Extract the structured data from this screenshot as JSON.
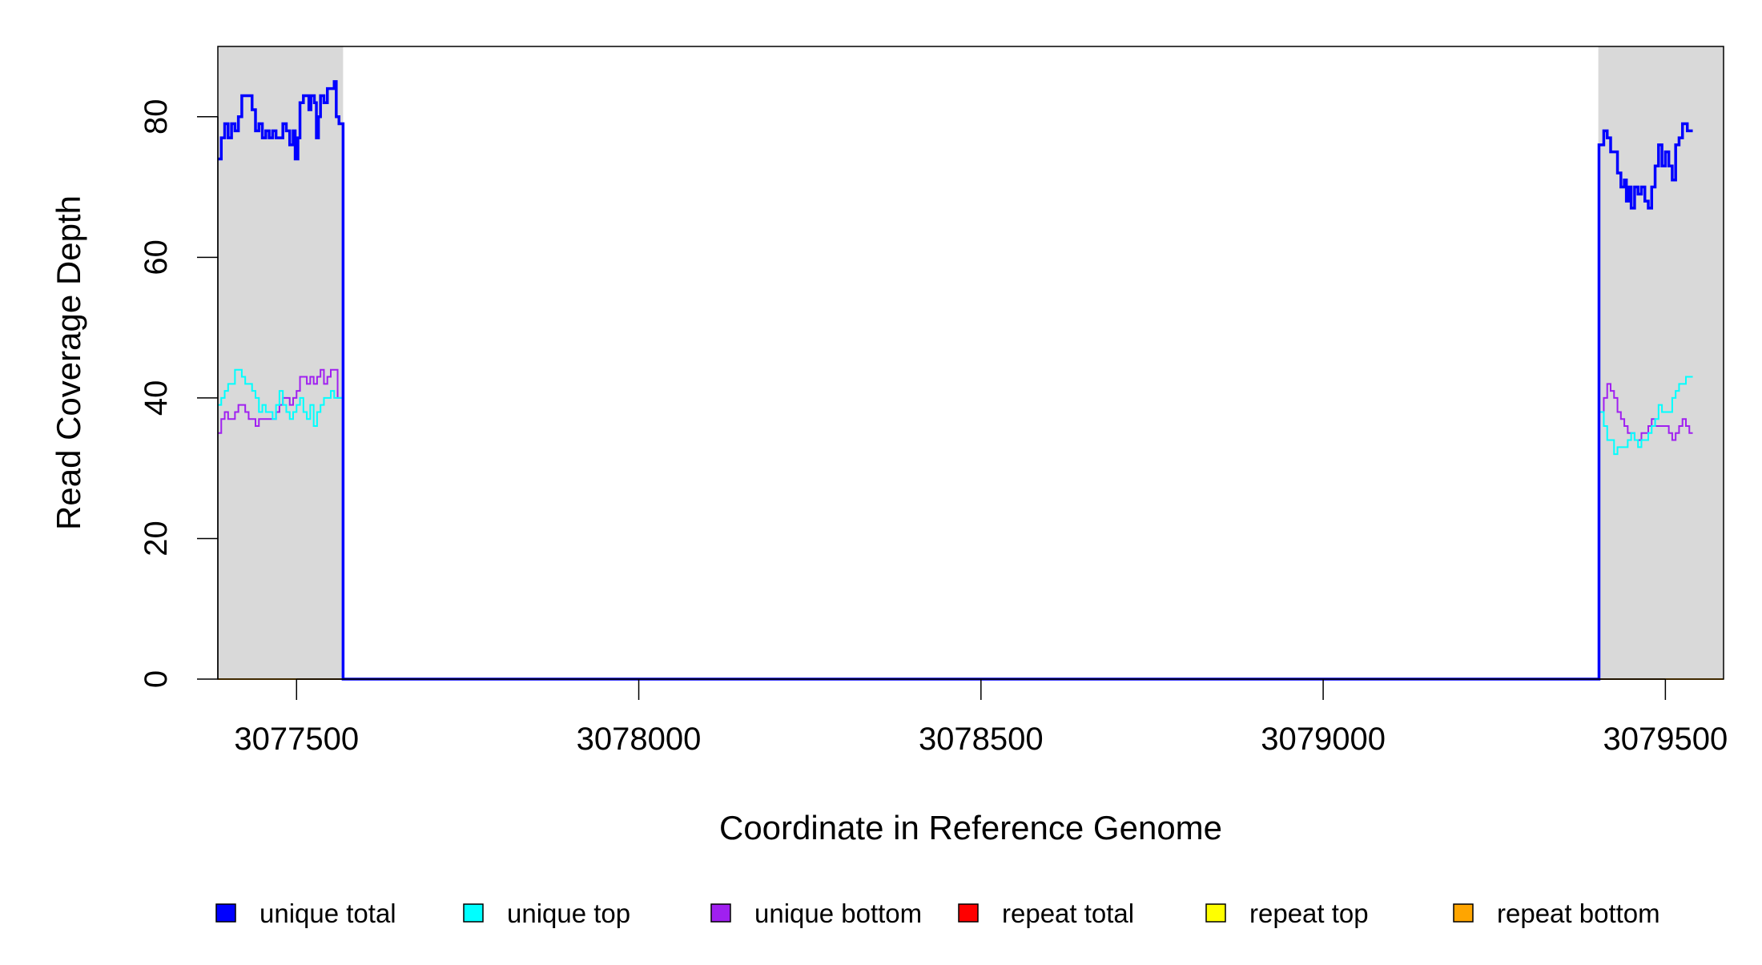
{
  "chart_data": {
    "type": "line",
    "title": "",
    "xlabel": "Coordinate in Reference Genome",
    "ylabel": "Read Coverage Depth",
    "xlim": [
      3077385,
      3079585
    ],
    "ylim": [
      0,
      90
    ],
    "x_ticks": [
      3077500,
      3078000,
      3078500,
      3079000,
      3079500
    ],
    "x_tick_labels": [
      "3077500",
      "3078000",
      "3078500",
      "3079000",
      "3079500"
    ],
    "y_ticks": [
      0,
      20,
      40,
      60,
      80
    ],
    "y_tick_labels": [
      "0",
      "20",
      "40",
      "60",
      "80"
    ],
    "shaded_regions": [
      [
        3077385,
        3077568
      ],
      [
        3079402,
        3079585
      ]
    ],
    "shade_color": "#d9d9d9",
    "grid": false,
    "legend": {
      "placement": "bottom",
      "entries": [
        {
          "label": "unique total",
          "color": "#0000ff"
        },
        {
          "label": "unique top",
          "color": "#00ffff"
        },
        {
          "label": "unique bottom",
          "color": "#a020f0"
        },
        {
          "label": "repeat total",
          "color": "#ff0000"
        },
        {
          "label": "repeat top",
          "color": "#ffff00"
        },
        {
          "label": "repeat bottom",
          "color": "#ffa500"
        }
      ]
    },
    "series": [
      {
        "name": "unique total",
        "color": "#0000ff",
        "points": [
          [
            3077385,
            74
          ],
          [
            3077390,
            77
          ],
          [
            3077395,
            79
          ],
          [
            3077400,
            77
          ],
          [
            3077405,
            79
          ],
          [
            3077410,
            78
          ],
          [
            3077415,
            80
          ],
          [
            3077420,
            83
          ],
          [
            3077430,
            83
          ],
          [
            3077435,
            81
          ],
          [
            3077440,
            78
          ],
          [
            3077445,
            79
          ],
          [
            3077450,
            77
          ],
          [
            3077455,
            78
          ],
          [
            3077460,
            77
          ],
          [
            3077465,
            78
          ],
          [
            3077470,
            77
          ],
          [
            3077475,
            77
          ],
          [
            3077480,
            79
          ],
          [
            3077485,
            78
          ],
          [
            3077490,
            76
          ],
          [
            3077495,
            78
          ],
          [
            3077498,
            74
          ],
          [
            3077502,
            77
          ],
          [
            3077505,
            82
          ],
          [
            3077510,
            83
          ],
          [
            3077518,
            81
          ],
          [
            3077521,
            83
          ],
          [
            3077526,
            82
          ],
          [
            3077529,
            77
          ],
          [
            3077532,
            80
          ],
          [
            3077535,
            83
          ],
          [
            3077540,
            82
          ],
          [
            3077545,
            84
          ],
          [
            3077555,
            85
          ],
          [
            3077558,
            80
          ],
          [
            3077562,
            79
          ],
          [
            3077567,
            79
          ],
          [
            3077568,
            0
          ],
          [
            3079402,
            0
          ],
          [
            3079403,
            76
          ],
          [
            3079410,
            78
          ],
          [
            3079415,
            77
          ],
          [
            3079420,
            75
          ],
          [
            3079430,
            72
          ],
          [
            3079435,
            70
          ],
          [
            3079440,
            71
          ],
          [
            3079443,
            68
          ],
          [
            3079446,
            70
          ],
          [
            3079450,
            67
          ],
          [
            3079455,
            70
          ],
          [
            3079460,
            69
          ],
          [
            3079465,
            70
          ],
          [
            3079470,
            68
          ],
          [
            3079475,
            67
          ],
          [
            3079480,
            70
          ],
          [
            3079485,
            73
          ],
          [
            3079490,
            76
          ],
          [
            3079495,
            73
          ],
          [
            3079500,
            75
          ],
          [
            3079505,
            73
          ],
          [
            3079510,
            71
          ],
          [
            3079515,
            76
          ],
          [
            3079520,
            77
          ],
          [
            3079525,
            79
          ],
          [
            3079532,
            78
          ],
          [
            3079535,
            78
          ]
        ]
      },
      {
        "name": "unique top",
        "color": "#00ffff",
        "points": [
          [
            3077385,
            39
          ],
          [
            3077390,
            40
          ],
          [
            3077395,
            41
          ],
          [
            3077400,
            42
          ],
          [
            3077410,
            44
          ],
          [
            3077420,
            43
          ],
          [
            3077425,
            42
          ],
          [
            3077430,
            42
          ],
          [
            3077435,
            41
          ],
          [
            3077440,
            40
          ],
          [
            3077445,
            38
          ],
          [
            3077450,
            39
          ],
          [
            3077455,
            38
          ],
          [
            3077460,
            38
          ],
          [
            3077465,
            37
          ],
          [
            3077470,
            39
          ],
          [
            3077475,
            41
          ],
          [
            3077480,
            39
          ],
          [
            3077485,
            38
          ],
          [
            3077490,
            37
          ],
          [
            3077495,
            38
          ],
          [
            3077500,
            39
          ],
          [
            3077505,
            40
          ],
          [
            3077510,
            38
          ],
          [
            3077515,
            37
          ],
          [
            3077520,
            39
          ],
          [
            3077525,
            36
          ],
          [
            3077530,
            38
          ],
          [
            3077535,
            39
          ],
          [
            3077540,
            40
          ],
          [
            3077545,
            40
          ],
          [
            3077550,
            41
          ],
          [
            3077555,
            40
          ],
          [
            3077560,
            40
          ],
          [
            3077567,
            40
          ],
          [
            3077568,
            0
          ],
          [
            3079402,
            0
          ],
          [
            3079403,
            38
          ],
          [
            3079410,
            36
          ],
          [
            3079415,
            34
          ],
          [
            3079420,
            34
          ],
          [
            3079425,
            32
          ],
          [
            3079430,
            33
          ],
          [
            3079435,
            33
          ],
          [
            3079440,
            33
          ],
          [
            3079445,
            34
          ],
          [
            3079450,
            35
          ],
          [
            3079455,
            34
          ],
          [
            3079460,
            33
          ],
          [
            3079465,
            34
          ],
          [
            3079470,
            34
          ],
          [
            3079475,
            35
          ],
          [
            3079480,
            36
          ],
          [
            3079485,
            37
          ],
          [
            3079490,
            39
          ],
          [
            3079495,
            38
          ],
          [
            3079500,
            38
          ],
          [
            3079505,
            38
          ],
          [
            3079510,
            40
          ],
          [
            3079515,
            41
          ],
          [
            3079520,
            42
          ],
          [
            3079525,
            42
          ],
          [
            3079530,
            43
          ],
          [
            3079535,
            43
          ]
        ]
      },
      {
        "name": "unique bottom",
        "color": "#a020f0",
        "points": [
          [
            3077385,
            35
          ],
          [
            3077390,
            37
          ],
          [
            3077395,
            38
          ],
          [
            3077400,
            37
          ],
          [
            3077410,
            38
          ],
          [
            3077415,
            39
          ],
          [
            3077425,
            38
          ],
          [
            3077430,
            37
          ],
          [
            3077440,
            36
          ],
          [
            3077445,
            37
          ],
          [
            3077450,
            37
          ],
          [
            3077460,
            37
          ],
          [
            3077465,
            37
          ],
          [
            3077470,
            38
          ],
          [
            3077475,
            39
          ],
          [
            3077480,
            40
          ],
          [
            3077485,
            40
          ],
          [
            3077490,
            39
          ],
          [
            3077495,
            40
          ],
          [
            3077500,
            41
          ],
          [
            3077505,
            43
          ],
          [
            3077510,
            43
          ],
          [
            3077515,
            42
          ],
          [
            3077520,
            43
          ],
          [
            3077525,
            42
          ],
          [
            3077530,
            43
          ],
          [
            3077535,
            44
          ],
          [
            3077540,
            42
          ],
          [
            3077545,
            43
          ],
          [
            3077550,
            44
          ],
          [
            3077555,
            44
          ],
          [
            3077560,
            40
          ],
          [
            3077567,
            40
          ],
          [
            3077568,
            0
          ],
          [
            3079402,
            0
          ],
          [
            3079403,
            38
          ],
          [
            3079410,
            40
          ],
          [
            3079415,
            42
          ],
          [
            3079420,
            41
          ],
          [
            3079425,
            40
          ],
          [
            3079430,
            38
          ],
          [
            3079435,
            37
          ],
          [
            3079440,
            36
          ],
          [
            3079445,
            35
          ],
          [
            3079450,
            35
          ],
          [
            3079455,
            34
          ],
          [
            3079460,
            34
          ],
          [
            3079465,
            35
          ],
          [
            3079470,
            35
          ],
          [
            3079475,
            36
          ],
          [
            3079480,
            37
          ],
          [
            3079485,
            36
          ],
          [
            3079490,
            36
          ],
          [
            3079495,
            36
          ],
          [
            3079500,
            36
          ],
          [
            3079505,
            35
          ],
          [
            3079510,
            34
          ],
          [
            3079515,
            35
          ],
          [
            3079520,
            36
          ],
          [
            3079525,
            37
          ],
          [
            3079530,
            36
          ],
          [
            3079535,
            35
          ]
        ]
      },
      {
        "name": "repeat total",
        "color": "#ff0000",
        "points": [
          [
            3077385,
            0
          ],
          [
            3079585,
            0
          ]
        ]
      },
      {
        "name": "repeat top",
        "color": "#ffff00",
        "points": [
          [
            3077385,
            0
          ],
          [
            3079585,
            0
          ]
        ]
      },
      {
        "name": "repeat bottom",
        "color": "#ffa500",
        "points": [
          [
            3077385,
            0
          ],
          [
            3079585,
            0
          ]
        ]
      }
    ]
  }
}
